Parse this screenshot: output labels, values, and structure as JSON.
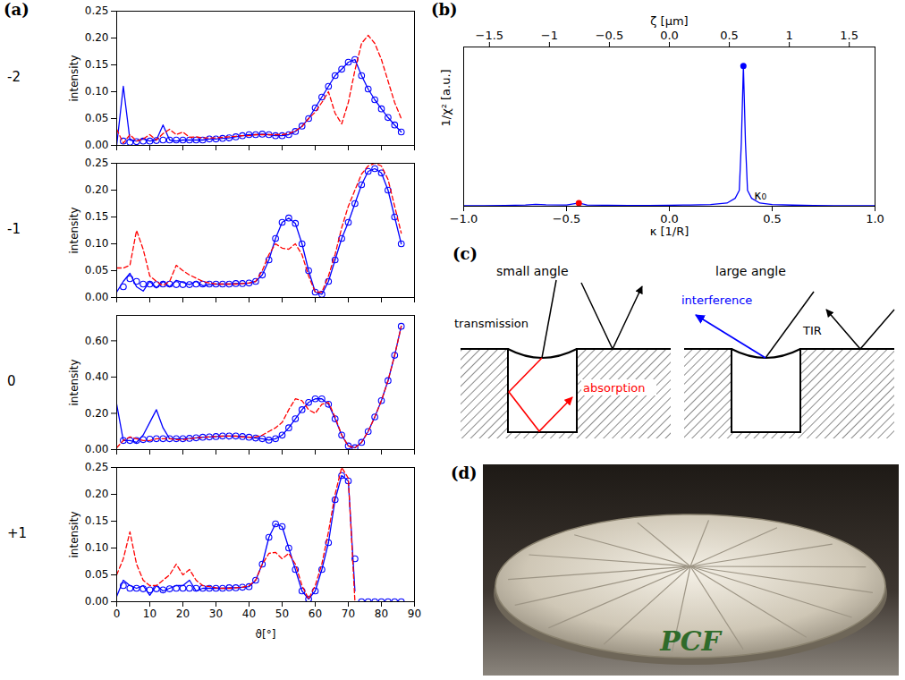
{
  "panel_labels": [
    "(a)",
    "(b)",
    "(c)",
    "(d)"
  ],
  "chart_data": [
    {
      "type": "line",
      "title": "-2",
      "ylabel": "intensity",
      "x": [
        0,
        2,
        4,
        6,
        8,
        10,
        12,
        14,
        16,
        18,
        20,
        22,
        24,
        26,
        28,
        30,
        32,
        34,
        36,
        38,
        40,
        42,
        44,
        46,
        48,
        50,
        52,
        54,
        56,
        58,
        60,
        62,
        64,
        66,
        68,
        70,
        72,
        74,
        76,
        78,
        80,
        82,
        84,
        86
      ],
      "xlim": [
        0,
        90
      ],
      "xticks": [
        0,
        10,
        20,
        30,
        40,
        50,
        60,
        70,
        80,
        90
      ],
      "ylim": [
        0,
        0.25
      ],
      "yticks": [
        {
          "value": 0,
          "label": "0.00"
        },
        {
          "value": 0.05,
          "label": "0.05"
        },
        {
          "value": 0.1,
          "label": "0.10"
        },
        {
          "value": 0.15,
          "label": "0.15"
        },
        {
          "value": 0.2,
          "label": "0.20"
        },
        {
          "value": 0.25,
          "label": "0.25"
        }
      ],
      "tick_labels": "y",
      "series": [
        {
          "color": "#0000ff",
          "line_style": "solid",
          "values": [
            0,
            0.11,
            0.01,
            0.008,
            0.012,
            0.008,
            0.01,
            0.038,
            0.01,
            0.008,
            0.01,
            0.01,
            0.01,
            0.01,
            0.012,
            0.012,
            0.013,
            0.014,
            0.016,
            0.018,
            0.02,
            0.02,
            0.021,
            0.02,
            0.018,
            0.018,
            0.02,
            0.026,
            0.036,
            0.05,
            0.07,
            0.09,
            0.11,
            0.13,
            0.142,
            0.155,
            0.16,
            0.13,
            0.105,
            0.085,
            0.068,
            0.052,
            0.038,
            0.025
          ]
        },
        {
          "color": "#0000ff",
          "marker": "circle",
          "line_style": "none",
          "values": [
            null,
            0.008,
            0.006,
            0.007,
            0.008,
            0.008,
            0.009,
            0.01,
            0.01,
            0.01,
            0.01,
            0.01,
            0.01,
            0.01,
            0.012,
            0.012,
            0.013,
            0.014,
            0.016,
            0.018,
            0.02,
            0.02,
            0.021,
            0.02,
            0.018,
            0.018,
            0.02,
            0.026,
            0.036,
            0.05,
            0.07,
            0.09,
            0.11,
            0.13,
            0.142,
            0.155,
            0.16,
            0.13,
            0.105,
            0.085,
            0.068,
            0.052,
            0.038,
            0.025
          ]
        },
        {
          "color": "#ff0000",
          "line_style": "dashed",
          "values": [
            0.03,
            0.004,
            0.02,
            0.008,
            0.012,
            0.02,
            0.01,
            0.022,
            0.03,
            0.02,
            0.025,
            0.015,
            0.016,
            0.014,
            0.014,
            0.014,
            0.015,
            0.016,
            0.017,
            0.018,
            0.018,
            0.02,
            0.02,
            0.02,
            0.02,
            0.02,
            0.022,
            0.027,
            0.035,
            0.05,
            0.062,
            0.08,
            0.1,
            0.06,
            0.04,
            0.08,
            0.14,
            0.19,
            0.205,
            0.19,
            0.16,
            0.12,
            0.08,
            0.05
          ]
        }
      ]
    },
    {
      "type": "line",
      "title": "-1",
      "ylabel": "intensity",
      "x": [
        0,
        2,
        4,
        6,
        8,
        10,
        12,
        14,
        16,
        18,
        20,
        22,
        24,
        26,
        28,
        30,
        32,
        34,
        36,
        38,
        40,
        42,
        44,
        46,
        48,
        50,
        52,
        54,
        56,
        58,
        60,
        62,
        64,
        66,
        68,
        70,
        72,
        74,
        76,
        78,
        80,
        82,
        84,
        86
      ],
      "xlim": [
        0,
        90
      ],
      "xticks": [
        0,
        10,
        20,
        30,
        40,
        50,
        60,
        70,
        80,
        90
      ],
      "ylim": [
        0,
        0.25
      ],
      "yticks": [
        {
          "value": 0,
          "label": "0.00"
        },
        {
          "value": 0.05,
          "label": "0.05"
        },
        {
          "value": 0.1,
          "label": "0.10"
        },
        {
          "value": 0.15,
          "label": "0.15"
        },
        {
          "value": 0.2,
          "label": "0.20"
        },
        {
          "value": 0.25,
          "label": "0.25"
        }
      ],
      "tick_labels": "y",
      "series": [
        {
          "color": "#0000ff",
          "line_style": "solid",
          "values": [
            0.01,
            0.03,
            0.045,
            0.02,
            0.012,
            0.03,
            0.018,
            0.03,
            0.02,
            0.032,
            0.028,
            0.024,
            0.03,
            0.022,
            0.024,
            0.025,
            0.025,
            0.025,
            0.026,
            0.026,
            0.027,
            0.03,
            0.042,
            0.07,
            0.11,
            0.14,
            0.148,
            0.138,
            0.1,
            0.05,
            0.01,
            0.006,
            0.03,
            0.07,
            0.11,
            0.14,
            0.175,
            0.21,
            0.235,
            0.24,
            0.232,
            0.2,
            0.15,
            0.1
          ]
        },
        {
          "color": "#0000ff",
          "marker": "circle",
          "line_style": "none",
          "values": [
            null,
            0.02,
            0.035,
            0.03,
            0.025,
            0.025,
            0.024,
            0.025,
            0.025,
            0.024,
            0.024,
            0.024,
            0.025,
            0.025,
            0.025,
            0.025,
            0.025,
            0.025,
            0.026,
            0.026,
            0.027,
            0.03,
            0.042,
            0.07,
            0.11,
            0.14,
            0.148,
            0.138,
            0.1,
            0.05,
            0.01,
            0.006,
            0.03,
            0.07,
            0.11,
            0.14,
            0.175,
            0.21,
            0.235,
            0.24,
            0.232,
            0.2,
            0.15,
            0.1
          ]
        },
        {
          "color": "#ff0000",
          "line_style": "dashed",
          "values": [
            0.055,
            0.055,
            0.06,
            0.125,
            0.09,
            0.04,
            0.03,
            0.022,
            0.03,
            0.06,
            0.05,
            0.042,
            0.036,
            0.03,
            0.027,
            0.025,
            0.025,
            0.025,
            0.025,
            0.026,
            0.027,
            0.03,
            0.05,
            0.08,
            0.1,
            0.092,
            0.09,
            0.1,
            0.08,
            0.04,
            0.01,
            0.01,
            0.04,
            0.08,
            0.13,
            0.17,
            0.2,
            0.23,
            0.245,
            0.25,
            0.245,
            0.22,
            0.17,
            0.12
          ]
        }
      ]
    },
    {
      "type": "line",
      "title": "0",
      "ylabel": "intensity",
      "x": [
        0,
        2,
        4,
        6,
        8,
        10,
        12,
        14,
        16,
        18,
        20,
        22,
        24,
        26,
        28,
        30,
        32,
        34,
        36,
        38,
        40,
        42,
        44,
        46,
        48,
        50,
        52,
        54,
        56,
        58,
        60,
        62,
        64,
        66,
        68,
        70,
        72,
        74,
        76,
        78,
        80,
        82,
        84,
        86
      ],
      "xlim": [
        0,
        90
      ],
      "xticks": [
        0,
        10,
        20,
        30,
        40,
        50,
        60,
        70,
        80,
        90
      ],
      "ylim": [
        0,
        0.74
      ],
      "yticks": [
        {
          "value": 0,
          "label": "0.00"
        },
        {
          "value": 0.2,
          "label": "0.20"
        },
        {
          "value": 0.4,
          "label": "0.40"
        },
        {
          "value": 0.6,
          "label": "0.60"
        }
      ],
      "tick_labels": "y",
      "series": [
        {
          "color": "#0000ff",
          "line_style": "solid",
          "values": [
            0.25,
            0.05,
            0.05,
            0.04,
            0.08,
            0.15,
            0.22,
            0.12,
            0.06,
            0.06,
            0.06,
            0.062,
            0.065,
            0.068,
            0.07,
            0.072,
            0.075,
            0.075,
            0.075,
            0.072,
            0.068,
            0.064,
            0.06,
            0.052,
            0.06,
            0.08,
            0.12,
            0.17,
            0.22,
            0.26,
            0.28,
            0.28,
            0.25,
            0.17,
            0.08,
            0.02,
            0.01,
            0.04,
            0.1,
            0.18,
            0.27,
            0.38,
            0.52,
            0.68
          ]
        },
        {
          "color": "#0000ff",
          "marker": "circle",
          "line_style": "none",
          "values": [
            null,
            0.05,
            0.05,
            0.05,
            0.055,
            0.058,
            0.06,
            0.06,
            0.06,
            0.06,
            0.06,
            0.062,
            0.065,
            0.068,
            0.07,
            0.072,
            0.075,
            0.075,
            0.075,
            0.072,
            0.068,
            0.064,
            0.06,
            0.052,
            0.06,
            0.08,
            0.12,
            0.17,
            0.22,
            0.26,
            0.28,
            0.28,
            0.25,
            0.17,
            0.08,
            0.02,
            0.01,
            0.04,
            0.1,
            0.18,
            0.27,
            0.38,
            0.52,
            0.68
          ]
        },
        {
          "color": "#ff0000",
          "line_style": "dashed",
          "values": [
            0.01,
            0.05,
            0.07,
            0.06,
            0.05,
            0.05,
            0.06,
            0.06,
            0.06,
            0.055,
            0.055,
            0.06,
            0.065,
            0.068,
            0.07,
            0.072,
            0.074,
            0.075,
            0.074,
            0.07,
            0.068,
            0.07,
            0.08,
            0.1,
            0.12,
            0.15,
            0.22,
            0.28,
            0.27,
            0.22,
            0.2,
            0.25,
            0.26,
            0.18,
            0.08,
            0.02,
            0.01,
            0.04,
            0.1,
            0.18,
            0.27,
            0.38,
            0.52,
            0.68
          ]
        }
      ]
    },
    {
      "type": "line",
      "title": "+1",
      "ylabel": "intensity",
      "xlabel": "ϑ[°]",
      "x": [
        0,
        2,
        4,
        6,
        8,
        10,
        12,
        14,
        16,
        18,
        20,
        22,
        24,
        26,
        28,
        30,
        32,
        34,
        36,
        38,
        40,
        42,
        44,
        46,
        48,
        50,
        52,
        54,
        56,
        58,
        60,
        62,
        64,
        66,
        68,
        70,
        72,
        74,
        76,
        78,
        80,
        82,
        84,
        86
      ],
      "xlim": [
        0,
        90
      ],
      "xticks": [
        0,
        10,
        20,
        30,
        40,
        50,
        60,
        70,
        80,
        90
      ],
      "ylim": [
        0,
        0.25
      ],
      "yticks": [
        {
          "value": 0,
          "label": "0.00"
        },
        {
          "value": 0.05,
          "label": "0.05"
        },
        {
          "value": 0.1,
          "label": "0.10"
        },
        {
          "value": 0.15,
          "label": "0.15"
        },
        {
          "value": 0.2,
          "label": "0.20"
        },
        {
          "value": 0.25,
          "label": "0.25"
        }
      ],
      "series": [
        {
          "color": "#0000ff",
          "line_style": "solid",
          "values": [
            0.01,
            0.04,
            0.03,
            0.025,
            0.03,
            0.012,
            0.03,
            0.02,
            0.025,
            0.03,
            0.03,
            0.04,
            0.02,
            0.025,
            0.025,
            0.025,
            0.025,
            0.026,
            0.026,
            0.027,
            0.028,
            0.04,
            0.07,
            0.12,
            0.145,
            0.14,
            0.1,
            0.06,
            0.02,
            0.005,
            0.02,
            0.06,
            0.11,
            0.19,
            0.235,
            0.225,
            0.02,
            null,
            null,
            null,
            null,
            null,
            null,
            null
          ]
        },
        {
          "color": "#0000ff",
          "marker": "circle",
          "line_style": "none",
          "values": [
            null,
            0.03,
            0.025,
            0.025,
            0.024,
            0.022,
            0.024,
            0.022,
            0.024,
            0.025,
            0.025,
            0.025,
            0.025,
            0.025,
            0.025,
            0.025,
            0.025,
            0.026,
            0.026,
            0.027,
            0.028,
            0.04,
            0.07,
            0.12,
            0.145,
            0.14,
            0.1,
            0.06,
            0.02,
            0.005,
            0.02,
            0.06,
            0.11,
            0.19,
            0.235,
            0.225,
            0.08,
            0,
            0,
            0,
            0,
            0,
            0,
            0
          ]
        },
        {
          "color": "#ff0000",
          "line_style": "dashed",
          "values": [
            0.05,
            0.08,
            0.13,
            0.07,
            0.04,
            0.03,
            0.03,
            0.04,
            0.05,
            0.07,
            0.05,
            0.06,
            0.04,
            0.03,
            0.028,
            0.026,
            0.025,
            0.025,
            0.026,
            0.027,
            0.03,
            0.04,
            0.07,
            0.09,
            0.092,
            0.08,
            0.09,
            0.07,
            0.03,
            0.005,
            0.03,
            0.07,
            0.13,
            0.2,
            0.25,
            0.23,
            0,
            null,
            null,
            null,
            null,
            null,
            null,
            null
          ]
        }
      ]
    },
    {
      "type": "line",
      "xlabel": "κ [1/R]",
      "x2label": "ζ [μm]",
      "ylabel": "1/χ² [a.u.]",
      "x": [
        -1,
        -0.9,
        -0.8,
        -0.7,
        -0.65,
        -0.6,
        -0.5,
        -0.44,
        -0.4,
        -0.3,
        -0.2,
        -0.1,
        0,
        0.1,
        0.2,
        0.28,
        0.32,
        0.34,
        0.35,
        0.36,
        0.37,
        0.38,
        0.4,
        0.44,
        0.5,
        0.6,
        0.7,
        0.8,
        0.9,
        1
      ],
      "xlim": [
        -1,
        1
      ],
      "xticks": [
        {
          "value": -1,
          "label": "−1.0"
        },
        {
          "value": -0.5,
          "label": "−0.5"
        },
        {
          "value": 0,
          "label": "0.0"
        },
        0.5,
        {
          "value": 1,
          "label": "1.0"
        }
      ],
      "x2lim": [
        -1.715,
        1.715
      ],
      "x2ticks": [
        {
          "value": -1.5,
          "label": "−1.5"
        },
        {
          "value": -1,
          "label": "−1"
        },
        {
          "value": -0.5,
          "label": "−0.5"
        },
        {
          "value": 0,
          "label": "0.0"
        },
        0.5,
        1,
        1.5
      ],
      "ylim": [
        0,
        1
      ],
      "tick_labels": "x",
      "series": [
        {
          "color": "#0000ff",
          "line_style": "solid",
          "values": [
            0.003,
            0.004,
            0.005,
            0.008,
            0.012,
            0.009,
            0.008,
            0.02,
            0.008,
            0.006,
            0.005,
            0.005,
            0.006,
            0.008,
            0.01,
            0.02,
            0.05,
            0.1,
            0.4,
            0.88,
            0.4,
            0.1,
            0.05,
            0.02,
            0.01,
            0.007,
            0.005,
            0.004,
            0.004,
            0.003
          ]
        }
      ],
      "points": {
        "x": [
          0.36,
          -0.44
        ],
        "y": [
          0.88,
          0.02
        ],
        "colors": [
          "#0000ff",
          "#ff0000"
        ]
      },
      "annotations": [
        {
          "text": "κ₀",
          "x": 0.36,
          "y": 0
        }
      ]
    }
  ],
  "diagram": {
    "left": {
      "title": "small angle",
      "labels": [
        "transmission",
        "absorption"
      ]
    },
    "right": {
      "title": "large angle",
      "labels": [
        "interference",
        "TIR"
      ]
    }
  },
  "photo": {
    "text": "PCF"
  }
}
